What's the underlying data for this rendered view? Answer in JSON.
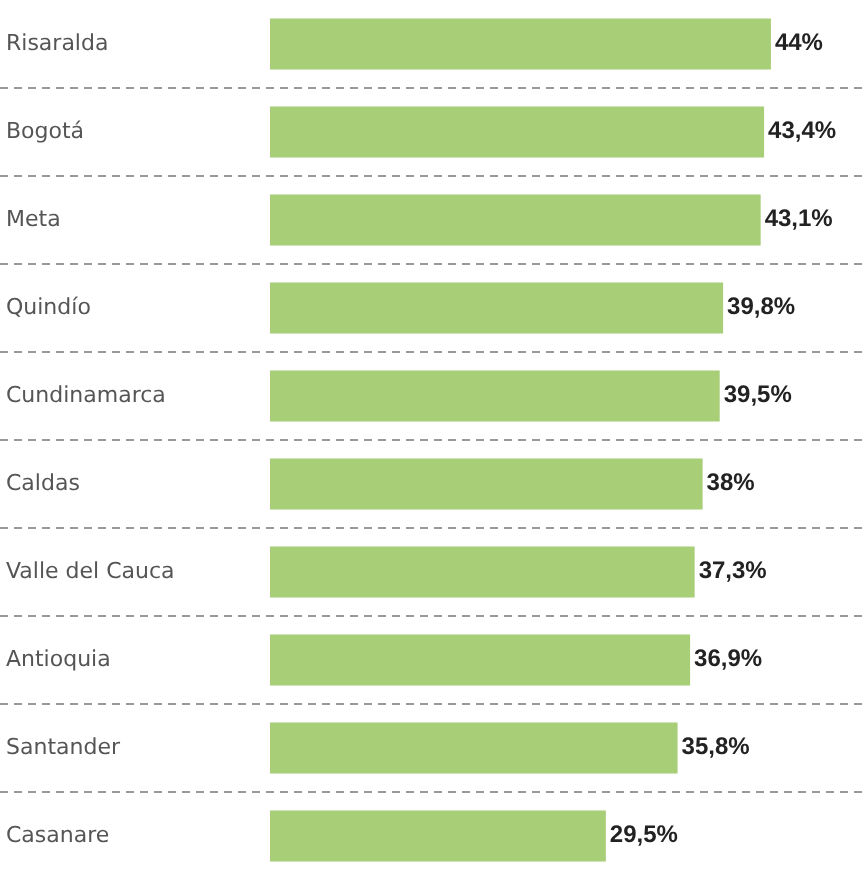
{
  "chart_data": {
    "type": "bar",
    "orientation": "horizontal",
    "categories": [
      "Risaralda",
      "Bogotá",
      "Meta",
      "Quindío",
      "Cundinamarca",
      "Caldas",
      "Valle del Cauca",
      "Antioquia",
      "Santander",
      "Casanare"
    ],
    "values": [
      44,
      43.4,
      43.1,
      39.8,
      39.5,
      38,
      37.3,
      36.9,
      35.8,
      29.5
    ],
    "value_labels": [
      "44%",
      "43,4%",
      "43,1%",
      "39,8%",
      "39,5%",
      "38%",
      "37,3%",
      "36,9%",
      "35,8%",
      "29,5%"
    ],
    "color": "#a8cf78",
    "xlim": [
      0,
      52
    ],
    "tick_labels": "y",
    "grid": "y"
  }
}
